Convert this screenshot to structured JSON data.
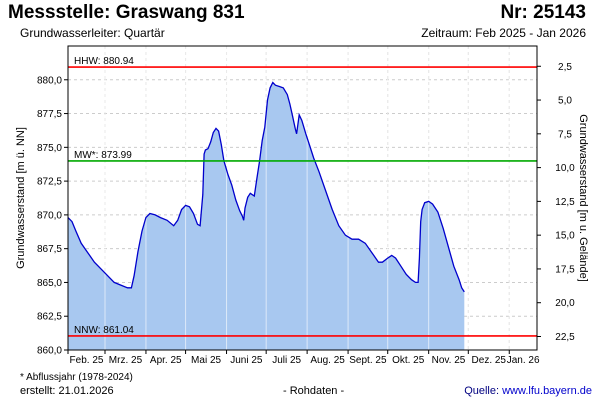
{
  "header": {
    "title": "Messstelle: Graswang 831",
    "number": "Nr: 25143",
    "aquifer": "Grundwasserleiter: Quartär",
    "period": "Zeitraum: Feb 2025 - Jan 2026"
  },
  "footer": {
    "note": "* Abflussjahr (1978-2024)",
    "created": "erstellt:  21.01.2026",
    "raw": "- Rohdaten -",
    "source_label": "Quelle:",
    "source_link": "www.lfu.bayern.de"
  },
  "colors": {
    "fill": "#a8c8f0",
    "line": "#0000cc",
    "hhw": "#ff0000",
    "mw": "#00aa00",
    "nnw": "#ff0000",
    "grid": "#cccccc"
  },
  "chart_data": {
    "type": "area",
    "xlabel": "",
    "ylabel": "Grundwasserstand [m ü. NN]",
    "ylabel_right": "Grundwasserstand [m u. Gelände]",
    "ylim": [
      860,
      882.5
    ],
    "yticks": [
      "860,0",
      "862,5",
      "865,0",
      "867,5",
      "870,0",
      "872,5",
      "875,0",
      "877,5",
      "880,0"
    ],
    "ytick_values": [
      860,
      862.5,
      865,
      867.5,
      870,
      872.5,
      875,
      877.5,
      880
    ],
    "ground_level": 883.5,
    "yticks_right": [
      "2,5",
      "5,0",
      "7,5",
      "10,0",
      "12,5",
      "15,0",
      "17,5",
      "20,0",
      "22,5"
    ],
    "ytick_right_values": [
      2.5,
      5,
      7.5,
      10,
      12.5,
      15,
      17.5,
      20,
      22.5
    ],
    "xlim": [
      0,
      355
    ],
    "month_labels": [
      "Feb. 25",
      "Mrz. 25",
      "Apr. 25",
      "Mai 25",
      "Juni 25",
      "Juli 25",
      "Aug. 25",
      "Sept. 25",
      "Okt. 25",
      "Nov. 25",
      "Dez. 25",
      "Jan. 26"
    ],
    "month_starts": [
      0,
      28,
      59,
      89,
      120,
      150,
      181,
      212,
      242,
      273,
      303,
      334
    ],
    "reference_lines": [
      {
        "label": "HHW: 880.94",
        "value": 880.94,
        "color_key": "hhw"
      },
      {
        "label": "MW*: 873.99",
        "value": 873.99,
        "color_key": "mw"
      },
      {
        "label": "NNW: 861.04",
        "value": 861.04,
        "color_key": "nnw"
      }
    ],
    "series": [
      {
        "values": [
          [
            0,
            869.8
          ],
          [
            3,
            869.5
          ],
          [
            6,
            868.8
          ],
          [
            10,
            867.9
          ],
          [
            15,
            867.2
          ],
          [
            20,
            866.5
          ],
          [
            25,
            866.0
          ],
          [
            30,
            865.5
          ],
          [
            35,
            865.0
          ],
          [
            40,
            864.8
          ],
          [
            45,
            864.6
          ],
          [
            48,
            864.6
          ],
          [
            50,
            865.5
          ],
          [
            53,
            867.3
          ],
          [
            56,
            868.8
          ],
          [
            59,
            869.8
          ],
          [
            62,
            870.1
          ],
          [
            66,
            870.0
          ],
          [
            70,
            869.8
          ],
          [
            75,
            869.6
          ],
          [
            80,
            869.2
          ],
          [
            83,
            869.6
          ],
          [
            86,
            870.4
          ],
          [
            89,
            870.7
          ],
          [
            92,
            870.6
          ],
          [
            95,
            870.1
          ],
          [
            98,
            869.3
          ],
          [
            100,
            869.2
          ],
          [
            102,
            871.5
          ],
          [
            103,
            874.5
          ],
          [
            104,
            874.8
          ],
          [
            106,
            874.9
          ],
          [
            108,
            875.4
          ],
          [
            110,
            876.1
          ],
          [
            112,
            876.4
          ],
          [
            114,
            876.2
          ],
          [
            116,
            875.2
          ],
          [
            118,
            874.0
          ],
          [
            121,
            873.0
          ],
          [
            124,
            872.2
          ],
          [
            127,
            871.1
          ],
          [
            130,
            870.3
          ],
          [
            132,
            869.9
          ],
          [
            133,
            869.6
          ],
          [
            134,
            870.5
          ],
          [
            136,
            871.3
          ],
          [
            138,
            871.6
          ],
          [
            141,
            871.4
          ],
          [
            143,
            872.7
          ],
          [
            145,
            874.0
          ],
          [
            147,
            875.5
          ],
          [
            149,
            876.5
          ],
          [
            151,
            878.5
          ],
          [
            153,
            879.4
          ],
          [
            155,
            879.8
          ],
          [
            157,
            879.6
          ],
          [
            160,
            879.5
          ],
          [
            163,
            879.4
          ],
          [
            166,
            878.9
          ],
          [
            168,
            878.2
          ],
          [
            170,
            877.3
          ],
          [
            172,
            876.4
          ],
          [
            173,
            876.0
          ],
          [
            175,
            877.4
          ],
          [
            177,
            877.0
          ],
          [
            180,
            876.0
          ],
          [
            183,
            875.1
          ],
          [
            186,
            874.2
          ],
          [
            190,
            873.2
          ],
          [
            195,
            871.8
          ],
          [
            200,
            870.4
          ],
          [
            205,
            869.2
          ],
          [
            210,
            868.5
          ],
          [
            215,
            868.2
          ],
          [
            220,
            868.2
          ],
          [
            225,
            867.9
          ],
          [
            230,
            867.2
          ],
          [
            235,
            866.5
          ],
          [
            238,
            866.5
          ],
          [
            242,
            866.8
          ],
          [
            245,
            867.0
          ],
          [
            248,
            866.8
          ],
          [
            252,
            866.2
          ],
          [
            256,
            865.6
          ],
          [
            260,
            865.2
          ],
          [
            263,
            865.0
          ],
          [
            265,
            865.0
          ],
          [
            266,
            866.8
          ],
          [
            267,
            869.5
          ],
          [
            268,
            870.4
          ],
          [
            270,
            870.9
          ],
          [
            273,
            871.0
          ],
          [
            276,
            870.8
          ],
          [
            280,
            870.2
          ],
          [
            284,
            869.0
          ],
          [
            288,
            867.6
          ],
          [
            292,
            866.2
          ],
          [
            296,
            865.2
          ],
          [
            298,
            864.6
          ],
          [
            300,
            864.3
          ]
        ]
      }
    ]
  }
}
